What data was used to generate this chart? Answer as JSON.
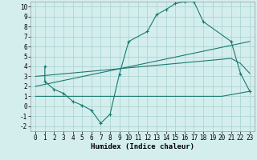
{
  "line1_x": [
    1,
    1,
    2,
    3,
    4,
    5,
    6,
    7,
    8,
    9,
    10,
    12,
    13,
    14,
    15,
    16,
    17,
    18,
    21,
    22,
    23
  ],
  "line1_y": [
    4.0,
    2.5,
    1.7,
    1.3,
    0.5,
    0.1,
    -0.4,
    -1.7,
    -0.8,
    3.2,
    6.5,
    7.5,
    9.2,
    9.7,
    10.3,
    10.5,
    10.5,
    8.5,
    6.5,
    3.3,
    1.5
  ],
  "line2_x": [
    0,
    23
  ],
  "line2_y": [
    2.0,
    6.5
  ],
  "line3_x": [
    0,
    21,
    22,
    23
  ],
  "line3_y": [
    3.0,
    4.8,
    4.3,
    3.3
  ],
  "line4_x": [
    0,
    20,
    23
  ],
  "line4_y": [
    1.0,
    1.0,
    1.5
  ],
  "color": "#1a7a6e",
  "bg_color": "#d4eeee",
  "grid_color": "#aed4d4",
  "xlabel": "Humidex (Indice chaleur)",
  "xlim": [
    -0.5,
    23.5
  ],
  "ylim": [
    -2.5,
    10.5
  ],
  "xticks": [
    0,
    1,
    2,
    3,
    4,
    5,
    6,
    7,
    8,
    9,
    10,
    11,
    12,
    13,
    14,
    15,
    16,
    17,
    18,
    19,
    20,
    21,
    22,
    23
  ],
  "yticks": [
    -2,
    -1,
    0,
    1,
    2,
    3,
    4,
    5,
    6,
    7,
    8,
    9,
    10
  ],
  "xlabel_fontsize": 6.5,
  "tick_fontsize": 5.5
}
